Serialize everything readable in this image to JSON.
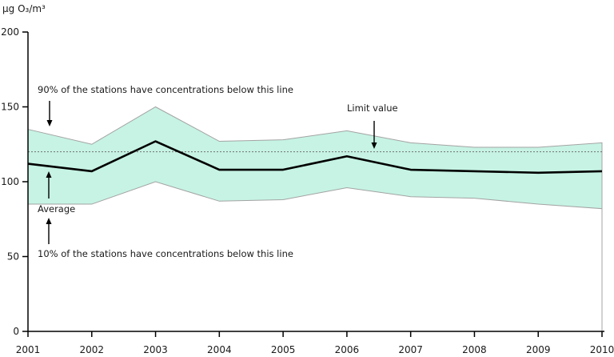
{
  "annotations": {
    "p90": "90% of the stations have concentrations below this line",
    "limit": "Limit value",
    "average": "Average",
    "p10": "10% of the stations have concentrations below this line"
  },
  "chart_data": {
    "type": "area",
    "title": "",
    "ylabel": "µg O₃/m³",
    "xlabel": "",
    "x": [
      2001,
      2002,
      2003,
      2004,
      2005,
      2006,
      2007,
      2008,
      2009,
      2010
    ],
    "series": [
      {
        "name": "90th percentile of stations (band top)",
        "values": [
          135,
          125,
          150,
          127,
          128,
          134,
          126,
          123,
          123,
          126
        ]
      },
      {
        "name": "Average",
        "values": [
          112,
          107,
          127,
          108,
          108,
          117,
          108,
          107,
          106,
          107
        ]
      },
      {
        "name": "10th percentile of stations (band bottom)",
        "values": [
          85,
          85,
          100,
          87,
          88,
          96,
          90,
          89,
          85,
          82
        ]
      }
    ],
    "limit_value": 120,
    "ylim": [
      0,
      200
    ],
    "yticks": [
      0,
      50,
      100,
      150,
      200
    ],
    "grid": false,
    "legend_position": "none",
    "band_fill": "#c6f3e4",
    "band_stroke": "#a3a3a3",
    "average_color": "#000000",
    "limit_line_color": "#6f6f6f",
    "axis_color": "#000000"
  }
}
